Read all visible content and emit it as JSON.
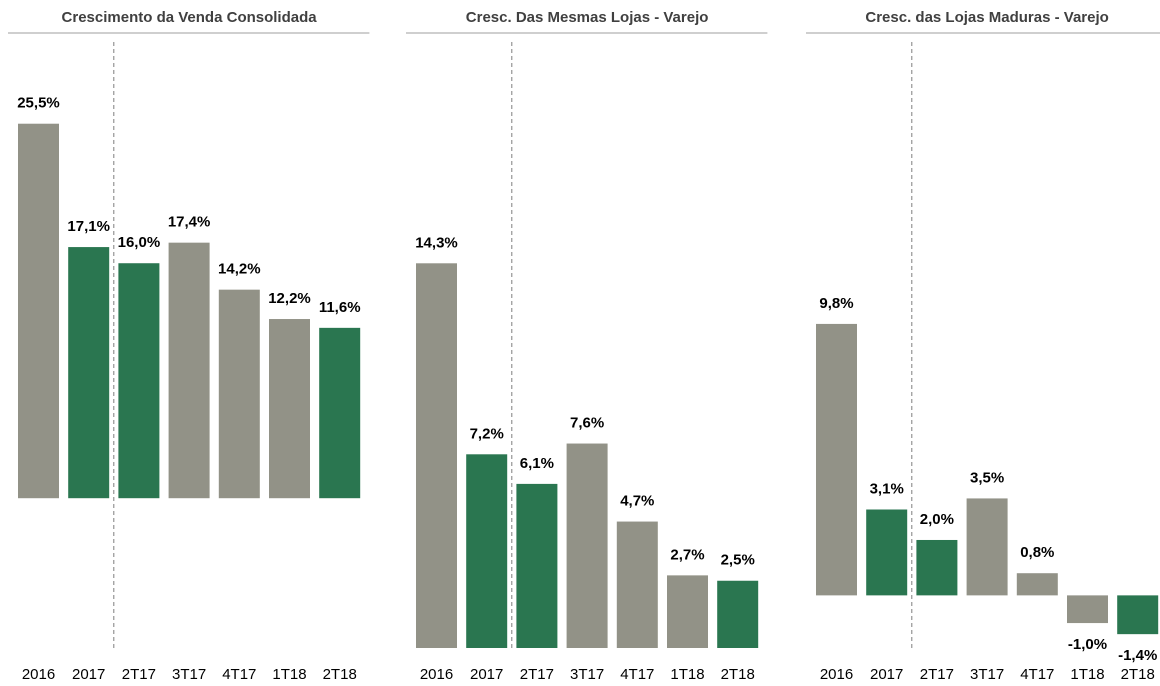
{
  "chart_data": [
    {
      "type": "bar",
      "title": "Crescimento da Venda Consolidada",
      "categories": [
        "2016",
        "2017",
        "2T17",
        "3T17",
        "4T17",
        "1T18",
        "2T18"
      ],
      "values": [
        25.5,
        17.1,
        16.0,
        17.4,
        14.2,
        12.2,
        11.6
      ],
      "value_labels": [
        "25,5%",
        "17,1%",
        "16,0%",
        "17,4%",
        "14,2%",
        "12,2%",
        "11,6%"
      ],
      "colors": [
        "#929287",
        "#2a7650",
        "#2a7650",
        "#929287",
        "#929287",
        "#929287",
        "#2a7650"
      ],
      "ylim": [
        -10.2,
        31.2
      ]
    },
    {
      "type": "bar",
      "title": "Cresc. Das Mesmas Lojas - Varejo",
      "categories": [
        "2016",
        "2017",
        "2T17",
        "3T17",
        "4T17",
        "1T18",
        "2T18"
      ],
      "values": [
        14.3,
        7.2,
        6.1,
        7.6,
        4.7,
        2.7,
        2.5
      ],
      "value_labels": [
        "14,3%",
        "7,2%",
        "6,1%",
        "7,6%",
        "4,7%",
        "2,7%",
        "2,5%"
      ],
      "colors": [
        "#929287",
        "#2a7650",
        "#2a7650",
        "#929287",
        "#929287",
        "#929287",
        "#2a7650"
      ],
      "ylim": [
        0,
        22.6
      ]
    },
    {
      "type": "bar",
      "title": "Cresc. das Lojas Maduras - Varejo",
      "categories": [
        "2016",
        "2017",
        "2T17",
        "3T17",
        "4T17",
        "1T18",
        "2T18"
      ],
      "values": [
        9.8,
        3.1,
        2.0,
        3.5,
        0.8,
        -1.0,
        -1.4
      ],
      "value_labels": [
        "9,8%",
        "3,1%",
        "2,0%",
        "3,5%",
        "0,8%",
        "-1,0%",
        "-1,4%"
      ],
      "colors": [
        "#929287",
        "#2a7650",
        "#2a7650",
        "#929287",
        "#929287",
        "#929287",
        "#2a7650"
      ],
      "ylim": [
        -1.9,
        20.05
      ]
    }
  ]
}
